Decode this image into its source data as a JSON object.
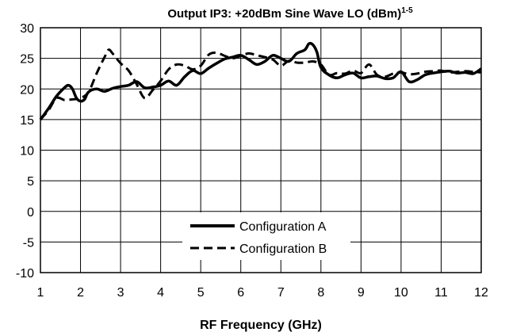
{
  "chart_data": {
    "type": "line",
    "title": "Output IP3: +20dBm Sine Wave LO (dBm)",
    "title_superscript": "1-5",
    "xlabel": "RF Frequency (GHz)",
    "ylabel": "",
    "xlim": [
      1,
      12
    ],
    "ylim": [
      -10,
      30
    ],
    "x_ticks": [
      1,
      2,
      3,
      4,
      5,
      6,
      7,
      8,
      9,
      10,
      11,
      12
    ],
    "y_ticks": [
      -10,
      -5,
      0,
      5,
      10,
      15,
      20,
      25,
      30
    ],
    "grid": true,
    "legend_position": "lower-center",
    "series": [
      {
        "name": "Configuration A",
        "style": "solid",
        "color": "#000000",
        "points": [
          [
            1.0,
            15.0
          ],
          [
            1.2,
            16.8
          ],
          [
            1.4,
            18.8
          ],
          [
            1.6,
            20.2
          ],
          [
            1.7,
            20.6
          ],
          [
            1.8,
            20.0
          ],
          [
            1.9,
            18.5
          ],
          [
            2.0,
            18.0
          ],
          [
            2.1,
            18.3
          ],
          [
            2.2,
            19.5
          ],
          [
            2.4,
            20.0
          ],
          [
            2.6,
            19.6
          ],
          [
            2.8,
            20.1
          ],
          [
            3.0,
            20.4
          ],
          [
            3.2,
            20.6
          ],
          [
            3.4,
            21.2
          ],
          [
            3.6,
            20.2
          ],
          [
            3.8,
            20.3
          ],
          [
            4.0,
            20.6
          ],
          [
            4.2,
            21.3
          ],
          [
            4.4,
            20.6
          ],
          [
            4.6,
            22.0
          ],
          [
            4.8,
            23.0
          ],
          [
            5.0,
            22.5
          ],
          [
            5.2,
            23.4
          ],
          [
            5.4,
            24.2
          ],
          [
            5.6,
            24.9
          ],
          [
            5.8,
            25.2
          ],
          [
            6.0,
            25.5
          ],
          [
            6.2,
            24.8
          ],
          [
            6.4,
            24.0
          ],
          [
            6.6,
            24.5
          ],
          [
            6.8,
            25.5
          ],
          [
            7.0,
            25.0
          ],
          [
            7.2,
            24.5
          ],
          [
            7.4,
            25.8
          ],
          [
            7.6,
            26.4
          ],
          [
            7.7,
            27.4
          ],
          [
            7.8,
            27.2
          ],
          [
            7.9,
            26.0
          ],
          [
            8.0,
            23.5
          ],
          [
            8.2,
            22.3
          ],
          [
            8.4,
            21.8
          ],
          [
            8.6,
            22.3
          ],
          [
            8.8,
            22.6
          ],
          [
            9.0,
            21.8
          ],
          [
            9.2,
            22.0
          ],
          [
            9.4,
            22.1
          ],
          [
            9.6,
            21.7
          ],
          [
            9.8,
            21.8
          ],
          [
            10.0,
            22.8
          ],
          [
            10.2,
            21.2
          ],
          [
            10.4,
            21.5
          ],
          [
            10.6,
            22.3
          ],
          [
            10.8,
            22.6
          ],
          [
            11.0,
            22.8
          ],
          [
            11.2,
            22.9
          ],
          [
            11.4,
            22.6
          ],
          [
            11.6,
            22.7
          ],
          [
            11.8,
            22.5
          ],
          [
            12.0,
            23.3
          ]
        ]
      },
      {
        "name": "Configuration B",
        "style": "dashed",
        "color": "#000000",
        "points": [
          [
            1.0,
            15.0
          ],
          [
            1.2,
            16.5
          ],
          [
            1.4,
            18.5
          ],
          [
            1.6,
            18.2
          ],
          [
            1.8,
            18.3
          ],
          [
            2.0,
            18.5
          ],
          [
            2.2,
            19.5
          ],
          [
            2.4,
            22.5
          ],
          [
            2.6,
            25.2
          ],
          [
            2.7,
            26.4
          ],
          [
            2.8,
            25.8
          ],
          [
            3.0,
            24.2
          ],
          [
            3.2,
            23.0
          ],
          [
            3.4,
            20.8
          ],
          [
            3.6,
            18.5
          ],
          [
            3.8,
            19.8
          ],
          [
            4.0,
            21.3
          ],
          [
            4.2,
            23.2
          ],
          [
            4.4,
            24.0
          ],
          [
            4.6,
            23.8
          ],
          [
            4.8,
            23.2
          ],
          [
            5.0,
            23.8
          ],
          [
            5.2,
            25.6
          ],
          [
            5.4,
            25.9
          ],
          [
            5.6,
            25.4
          ],
          [
            5.8,
            25.0
          ],
          [
            6.0,
            25.4
          ],
          [
            6.2,
            25.8
          ],
          [
            6.4,
            25.5
          ],
          [
            6.6,
            25.2
          ],
          [
            6.8,
            24.8
          ],
          [
            7.0,
            23.8
          ],
          [
            7.2,
            24.6
          ],
          [
            7.4,
            24.3
          ],
          [
            7.6,
            24.3
          ],
          [
            7.8,
            24.5
          ],
          [
            8.0,
            24.0
          ],
          [
            8.2,
            22.3
          ],
          [
            8.4,
            22.6
          ],
          [
            8.6,
            22.5
          ],
          [
            8.8,
            23.0
          ],
          [
            9.0,
            22.6
          ],
          [
            9.2,
            24.0
          ],
          [
            9.4,
            22.3
          ],
          [
            9.6,
            22.0
          ],
          [
            9.8,
            22.5
          ],
          [
            10.0,
            22.7
          ],
          [
            10.2,
            22.4
          ],
          [
            10.4,
            22.5
          ],
          [
            10.6,
            22.8
          ],
          [
            10.8,
            22.9
          ],
          [
            11.0,
            23.0
          ],
          [
            11.2,
            22.7
          ],
          [
            11.4,
            22.8
          ],
          [
            11.6,
            22.9
          ],
          [
            11.8,
            22.8
          ],
          [
            12.0,
            22.7
          ]
        ]
      }
    ]
  }
}
